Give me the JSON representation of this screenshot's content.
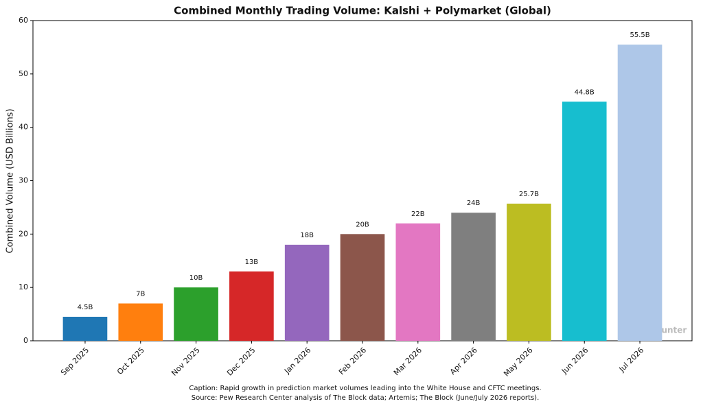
{
  "chart_data": {
    "type": "bar",
    "title": "Combined Monthly Trading Volume: Kalshi + Polymarket (Global)",
    "y_label": "Combined Volume (USD Billions)",
    "categories": [
      "Sep 2025",
      "Oct 2025",
      "Nov 2025",
      "Dec 2025",
      "Jan 2026",
      "Feb 2026",
      "Mar 2026",
      "Apr 2026",
      "May 2026",
      "Jun 2026",
      "Jul 2026"
    ],
    "values": [
      4.5,
      7,
      10,
      13,
      18,
      20,
      22,
      24,
      25.7,
      44.8,
      55.5
    ],
    "value_labels": [
      "4.5B",
      "7B",
      "10B",
      "13B",
      "18B",
      "20B",
      "22B",
      "24B",
      "25.7B",
      "44.8B",
      "55.5B"
    ],
    "colors": [
      "#1f77b4",
      "#ff7f0e",
      "#2ca02c",
      "#d62728",
      "#9467bd",
      "#8c564b",
      "#e377c2",
      "#7f7f7f",
      "#bcbd22",
      "#17becf",
      "#aec7e8"
    ],
    "ylim": [
      0,
      60
    ],
    "yticks": [
      0,
      10,
      20,
      30,
      40,
      50,
      60
    ],
    "grid": false,
    "watermark": "PolyPunter",
    "caption": [
      "Caption: Rapid growth in prediction market volumes leading into the White House and CFTC meetings.",
      "Source: Pew Research Center analysis of The Block data; Artemis; The Block (June/July 2026 reports)."
    ]
  }
}
